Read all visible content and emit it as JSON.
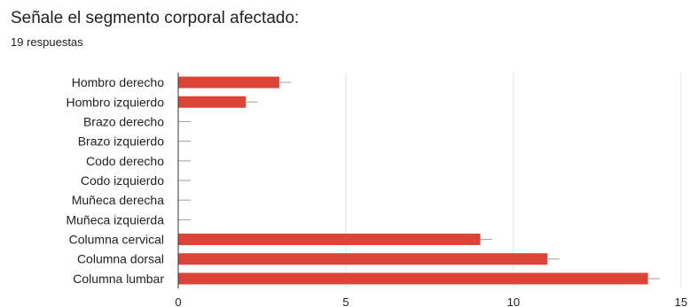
{
  "question": {
    "title": "Señale el segmento corporal afectado:",
    "responses": "19 respuestas"
  },
  "colors": {
    "bar": "#db4437",
    "grid": "#e0e0e0",
    "axis": "#333333",
    "error_bar": "#9e9e9e",
    "label": "#202124"
  },
  "chart_data": {
    "type": "bar",
    "orientation": "horizontal",
    "title": "Señale el segmento corporal afectado:",
    "categories": [
      "Hombro derecho",
      "Hombro izquierdo",
      "Brazo derecho",
      "Brazo izquierdo",
      "Codo derecho",
      "Codo izquierdo",
      "Muñeca derecha",
      "Muñeca izquierda",
      "Columna cervical",
      "Columna dorsal",
      "Columna lumbar"
    ],
    "values": [
      3,
      2,
      0,
      0,
      0,
      0,
      0,
      0,
      9,
      11,
      14
    ],
    "xlim": [
      0,
      15
    ],
    "xticks": [
      0,
      5,
      10,
      15
    ],
    "grid": true,
    "legend": "none"
  }
}
